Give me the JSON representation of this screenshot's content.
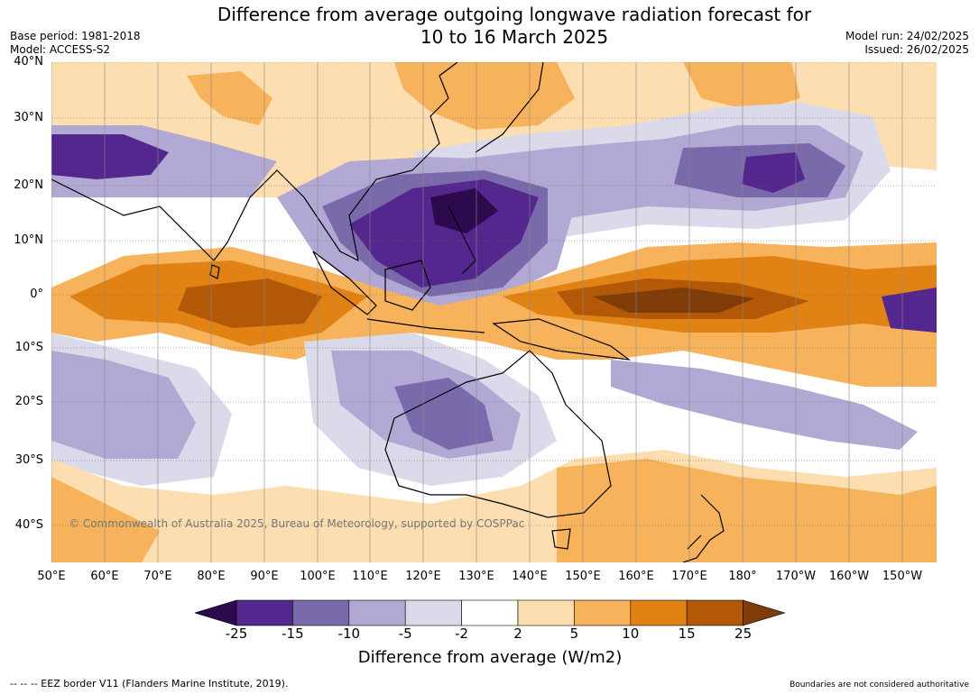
{
  "title": {
    "line1": "Difference from average outgoing longwave radiation forecast for",
    "line2": "10 to 16 March 2025"
  },
  "meta": {
    "base_period": "Base period: 1981-2018",
    "model": "Model: ACCESS-S2",
    "model_run": "Model run: 24/02/2025",
    "issued": "Issued: 26/02/2025"
  },
  "copyright": "© Commonwealth of Australia 2025, Bureau of Meteorology, supported by COSPPac",
  "lat_labels": [
    "40°N",
    "30°N",
    "20°N",
    "10°N",
    "0°",
    "10°S",
    "20°S",
    "30°S",
    "40°S"
  ],
  "lon_labels": [
    "50°E",
    "60°E",
    "70°E",
    "80°E",
    "90°E",
    "100°E",
    "110°E",
    "120°E",
    "130°E",
    "140°E",
    "150°E",
    "160°E",
    "170°E",
    "180°",
    "170°W",
    "160°W",
    "150°W"
  ],
  "colorbar": {
    "ticks": [
      "-25",
      "-15",
      "-10",
      "-5",
      "-2",
      "2",
      "5",
      "10",
      "15",
      "25"
    ],
    "colors": [
      "#2d0a4e",
      "#54278f",
      "#7b6aab",
      "#b1a9d3",
      "#dadaeb",
      "#ffffff",
      "#fddeb0",
      "#f7b25c",
      "#e08214",
      "#b35806",
      "#7f3b08"
    ],
    "label": "Difference from average (W/m2)"
  },
  "footer": {
    "eez": "--  --  -- EEZ border V11 (Flanders Marine Institute, 2019).",
    "boundaries": "Boundaries are not considered authoritative"
  }
}
